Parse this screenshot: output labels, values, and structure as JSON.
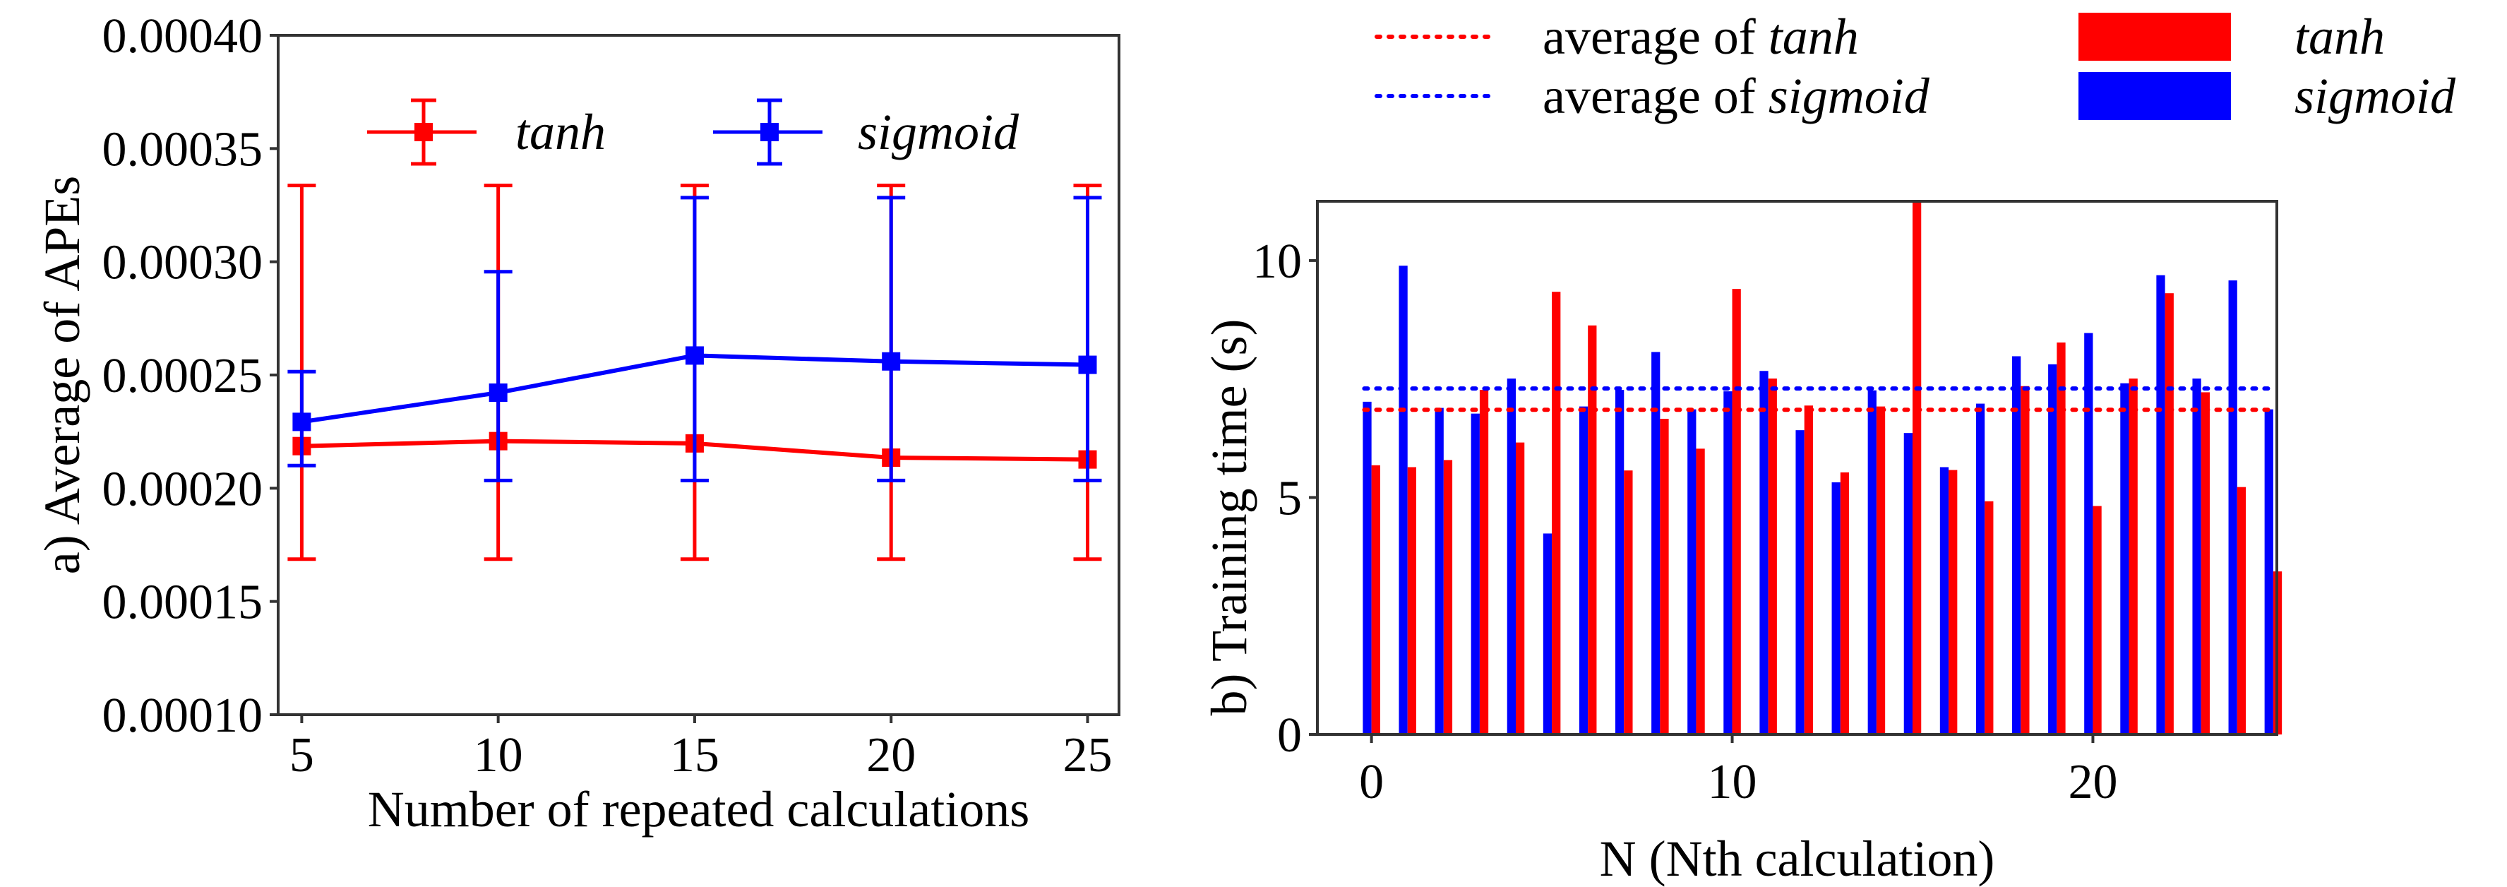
{
  "chart_data": [
    {
      "type": "line",
      "panel": "left",
      "xlabel": "Number of repeated calculations",
      "ylabel": "a) Average of APEs",
      "x": [
        5,
        10,
        15,
        20,
        25
      ],
      "xlim": [
        4.4,
        25.8
      ],
      "ylim": [
        0.0001,
        0.0004
      ],
      "xticks": [
        "5",
        "10",
        "15",
        "20",
        "25"
      ],
      "xtick_values": [
        5,
        10,
        15,
        20,
        25
      ],
      "yticks": [
        "0.00010",
        "0.00015",
        "0.00020",
        "0.00025",
        "0.00030",
        "0.00035",
        "0.00040"
      ],
      "ytick_values": [
        0.0001,
        0.00015,
        0.0002,
        0.00025,
        0.0003,
        0.00035,
        0.0004
      ],
      "legend_position": "top-center",
      "series": [
        {
          "name": "tanh",
          "color": "#ff0000",
          "values": [
            0.0002186,
            0.0002208,
            0.0002198,
            0.0002135,
            0.0002127
          ],
          "err_high": [
            0.0003337,
            0.0003337,
            0.0003337,
            0.0003337,
            0.0003337
          ],
          "err_low": [
            0.0001687,
            0.0001687,
            0.0001687,
            0.0001687,
            0.0001687
          ]
        },
        {
          "name": "sigmoid",
          "color": "#0000ff",
          "values": [
            0.0002293,
            0.0002422,
            0.0002586,
            0.000256,
            0.0002545
          ],
          "err_high": [
            0.0002515,
            0.0002956,
            0.0003283,
            0.0003283,
            0.0003283
          ],
          "err_low": [
            0.00021,
            0.0002034,
            0.0002034,
            0.0002034,
            0.0002034
          ]
        }
      ]
    },
    {
      "type": "bar",
      "panel": "right",
      "xlabel": "N (Nth calculation)",
      "ylabel": "b) Training time (s)",
      "xlim": [
        -1.5,
        25.1
      ],
      "ylim": [
        0,
        11.25
      ],
      "xticks": [
        "0",
        "10",
        "20"
      ],
      "xtick_values": [
        0,
        10,
        20
      ],
      "yticks": [
        "0",
        "5",
        "10"
      ],
      "ytick_values": [
        0,
        5,
        10
      ],
      "legend_position": "above-plot",
      "x": [
        0,
        1,
        2,
        3,
        4,
        5,
        6,
        7,
        8,
        9,
        10,
        11,
        12,
        13,
        14,
        15,
        16,
        17,
        18,
        19,
        20,
        21,
        22,
        23,
        24,
        25
      ],
      "series": [
        {
          "name": "sigmoid",
          "color": "#0000ff",
          "values": [
            7.02,
            9.89,
            6.89,
            6.77,
            7.51,
            4.24,
            6.92,
            7.27,
            8.07,
            6.86,
            7.24,
            7.67,
            6.42,
            5.32,
            7.26,
            6.36,
            5.64,
            6.98,
            7.98,
            7.81,
            8.47,
            7.41,
            9.69,
            7.51,
            9.58,
            6.86
          ]
        },
        {
          "name": "tanh",
          "color": "#ff0000",
          "values": [
            5.68,
            5.64,
            5.79,
            7.27,
            6.16,
            9.34,
            8.63,
            5.57,
            6.66,
            6.03,
            9.4,
            7.51,
            6.94,
            5.53,
            6.92,
            11.23,
            5.58,
            4.92,
            7.35,
            8.27,
            4.82,
            7.51,
            9.31,
            7.22,
            5.22,
            3.44
          ]
        }
      ],
      "averages": [
        {
          "prefix": "average of ",
          "name": "tanh",
          "value": 6.85,
          "color": "#ff0000"
        },
        {
          "prefix": "average of ",
          "name": "sigmoid",
          "value": 7.3,
          "color": "#0000ff"
        }
      ]
    }
  ]
}
